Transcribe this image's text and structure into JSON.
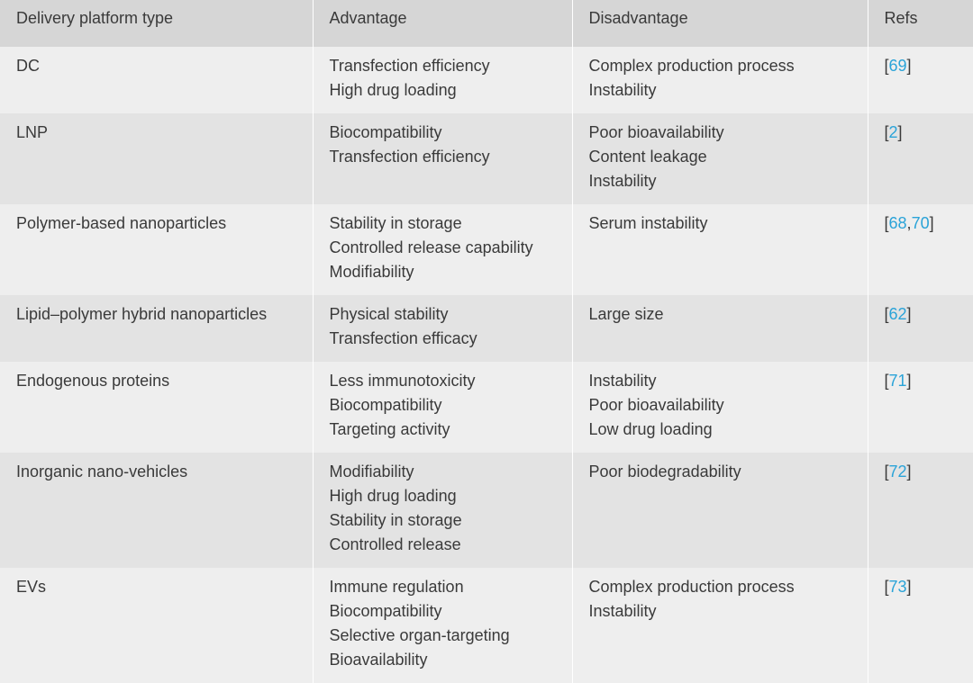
{
  "headers": {
    "platform": "Delivery platform type",
    "advantage": "Advantage",
    "disadvantage": "Disadvantage",
    "refs": "Refs"
  },
  "rows": [
    {
      "platform": "DC",
      "advantages": [
        "Transfection efficiency",
        "High drug loading"
      ],
      "disadvantages": [
        "Complex production process",
        "Instability"
      ],
      "refs": [
        "69"
      ]
    },
    {
      "platform": "LNP",
      "advantages": [
        "Biocompatibility",
        "Transfection efficiency"
      ],
      "disadvantages": [
        "Poor bioavailability",
        "Content leakage",
        "Instability"
      ],
      "refs": [
        "2"
      ]
    },
    {
      "platform": "Polymer-based nanoparticles",
      "advantages": [
        "Stability in storage",
        "Controlled release capability",
        "Modifiability"
      ],
      "disadvantages": [
        "Serum instability"
      ],
      "refs": [
        "68",
        "70"
      ]
    },
    {
      "platform": "Lipid–polymer hybrid nanoparticles",
      "advantages": [
        "Physical stability",
        "Transfection efficacy"
      ],
      "disadvantages": [
        "Large size"
      ],
      "refs": [
        "62"
      ]
    },
    {
      "platform": "Endogenous proteins",
      "advantages": [
        "Less immunotoxicity",
        "Biocompatibility",
        "Targeting activity"
      ],
      "disadvantages": [
        "Instability",
        "Poor bioavailability",
        "Low drug loading"
      ],
      "refs": [
        "71"
      ]
    },
    {
      "platform": "Inorganic nano-vehicles",
      "advantages": [
        "Modifiability",
        "High drug loading",
        "Stability in storage",
        "Controlled release"
      ],
      "disadvantages": [
        "Poor biodegradability"
      ],
      "refs": [
        "72"
      ]
    },
    {
      "platform": "EVs",
      "advantages": [
        "Immune regulation",
        "Biocompatibility",
        "Selective organ-targeting",
        "Bioavailability"
      ],
      "disadvantages": [
        "Complex production process",
        "Instability"
      ],
      "refs": [
        "73"
      ]
    }
  ],
  "colors": {
    "header_bg": "#d6d6d6",
    "row_odd_bg": "#eeeeee",
    "row_even_bg": "#e3e3e3",
    "text": "#3a3a3a",
    "ref_link": "#2aa3d8"
  }
}
